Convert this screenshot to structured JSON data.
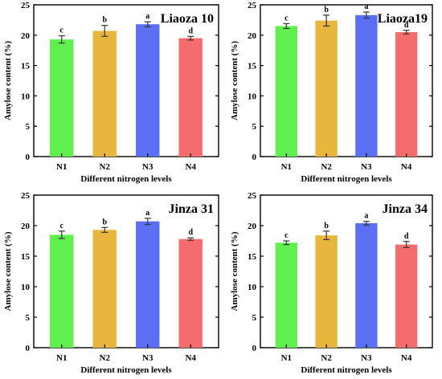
{
  "chart_data": [
    {
      "type": "bar",
      "title": "Liaoza 10",
      "categories": [
        "N1",
        "N2",
        "N3",
        "N4"
      ],
      "values": [
        19.3,
        20.7,
        21.8,
        19.5
      ],
      "errors": [
        0.6,
        0.9,
        0.4,
        0.3
      ],
      "letters": [
        "c",
        "b",
        "a",
        "d"
      ],
      "colors": [
        "#5ff04f",
        "#e8b63c",
        "#5b6ff5",
        "#f56c6c"
      ],
      "xlabel": "Different nitrogen levels",
      "ylabel": "Amylose content (%)",
      "ylim": [
        0,
        25
      ],
      "yticks": [
        "0",
        "5",
        "10",
        "15",
        "20",
        "25"
      ],
      "grid": false,
      "legend": "none"
    },
    {
      "type": "bar",
      "title": "Liaoza19",
      "categories": [
        "N1",
        "N2",
        "N3",
        "N4"
      ],
      "values": [
        21.5,
        22.4,
        23.3,
        20.5
      ],
      "errors": [
        0.4,
        0.9,
        0.5,
        0.3
      ],
      "letters": [
        "c",
        "b",
        "a",
        "d"
      ],
      "colors": [
        "#5ff04f",
        "#e8b63c",
        "#5b6ff5",
        "#f56c6c"
      ],
      "xlabel": "Different nitrogen levels",
      "ylabel": "Amylose content (%)",
      "ylim": [
        0,
        25
      ],
      "yticks": [
        "0",
        "5",
        "10",
        "15",
        "20",
        "25"
      ],
      "grid": false,
      "legend": "none"
    },
    {
      "type": "bar",
      "title": "Jinza 31",
      "categories": [
        "N1",
        "N2",
        "N3",
        "N4"
      ],
      "values": [
        18.5,
        19.3,
        20.7,
        17.8
      ],
      "errors": [
        0.6,
        0.4,
        0.5,
        0.2
      ],
      "letters": [
        "c",
        "b",
        "a",
        "d"
      ],
      "colors": [
        "#5ff04f",
        "#e8b63c",
        "#5b6ff5",
        "#f56c6c"
      ],
      "xlabel": "Different nitrogen levels",
      "ylabel": "Amylose content (%)",
      "ylim": [
        0,
        25
      ],
      "yticks": [
        "0",
        "5",
        "10",
        "15",
        "20",
        "25"
      ],
      "grid": false,
      "legend": "none"
    },
    {
      "type": "bar",
      "title": "Jinza 34",
      "categories": [
        "N1",
        "N2",
        "N3",
        "N4"
      ],
      "values": [
        17.2,
        18.4,
        20.4,
        16.9
      ],
      "errors": [
        0.3,
        0.7,
        0.3,
        0.5
      ],
      "letters": [
        "c",
        "b",
        "a",
        "d"
      ],
      "colors": [
        "#5ff04f",
        "#e8b63c",
        "#5b6ff5",
        "#f56c6c"
      ],
      "xlabel": "Different nitrogen levels",
      "ylabel": "Amylose content (%)",
      "ylim": [
        0,
        25
      ],
      "yticks": [
        "0",
        "5",
        "10",
        "15",
        "20",
        "25"
      ],
      "grid": false,
      "legend": "none"
    }
  ]
}
